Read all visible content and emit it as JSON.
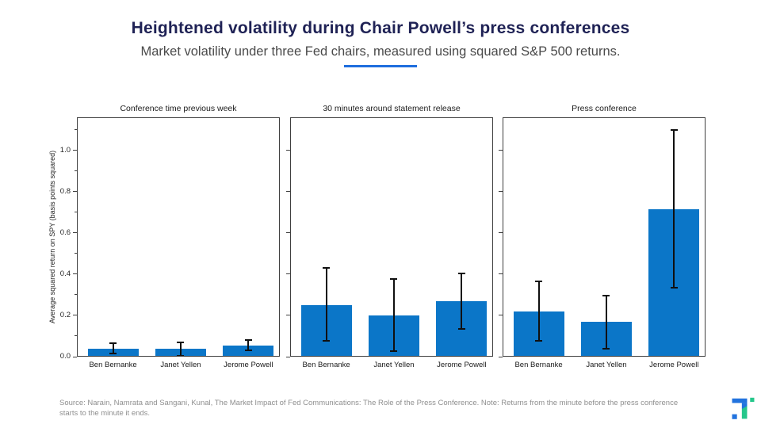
{
  "header": {
    "title": "Heightened volatility during Chair Powell’s press conferences",
    "subtitle": "Market volatility under three Fed chairs, measured using squared S&P 500 returns."
  },
  "chart_data": {
    "type": "bar",
    "categories": [
      "Ben Bernanke",
      "Janet Yellen",
      "Jerome Powell"
    ],
    "ylabel": "Average squared return on SPY (basis points squared)",
    "ylim": [
      0,
      1.16
    ],
    "yticks": [
      0.0,
      0.2,
      0.4,
      0.6,
      0.8,
      1.0
    ],
    "minor_yticks": [
      0.1,
      0.3,
      0.5,
      0.7,
      0.9,
      1.1
    ],
    "grid": false,
    "legend": "none",
    "bar_color": "#0b76c8",
    "error_bar_color": "#101010",
    "panels": [
      {
        "title": "Conference time previous week",
        "series": [
          {
            "category": "Ben Bernanke",
            "value": 0.04,
            "error_low": 0.015,
            "error_high": 0.065
          },
          {
            "category": "Janet Yellen",
            "value": 0.04,
            "error_low": 0.005,
            "error_high": 0.07
          },
          {
            "category": "Jerome Powell",
            "value": 0.055,
            "error_low": 0.03,
            "error_high": 0.08
          }
        ]
      },
      {
        "title": "30 minutes around statement release",
        "series": [
          {
            "category": "Ben Bernanke",
            "value": 0.25,
            "error_low": 0.075,
            "error_high": 0.43
          },
          {
            "category": "Janet Yellen",
            "value": 0.2,
            "error_low": 0.025,
            "error_high": 0.375
          },
          {
            "category": "Jerome Powell",
            "value": 0.27,
            "error_low": 0.135,
            "error_high": 0.405
          }
        ]
      },
      {
        "title": "Press conference",
        "series": [
          {
            "category": "Ben Bernanke",
            "value": 0.22,
            "error_low": 0.075,
            "error_high": 0.365
          },
          {
            "category": "Janet Yellen",
            "value": 0.17,
            "error_low": 0.04,
            "error_high": 0.295
          },
          {
            "category": "Jerome Powell",
            "value": 0.715,
            "error_low": 0.335,
            "error_high": 1.1
          }
        ]
      }
    ]
  },
  "footer": {
    "source": "Source: Narain, Namrata and Sangani, Kunal, The Market Impact of Fed Communications: The Role of the Press Conference. Note: Returns from the minute before the press conference starts to the minute it ends."
  },
  "branding": {
    "accent_underline": "#1e6ede",
    "logo_blue": "#2273de",
    "logo_green": "#25c78b"
  }
}
